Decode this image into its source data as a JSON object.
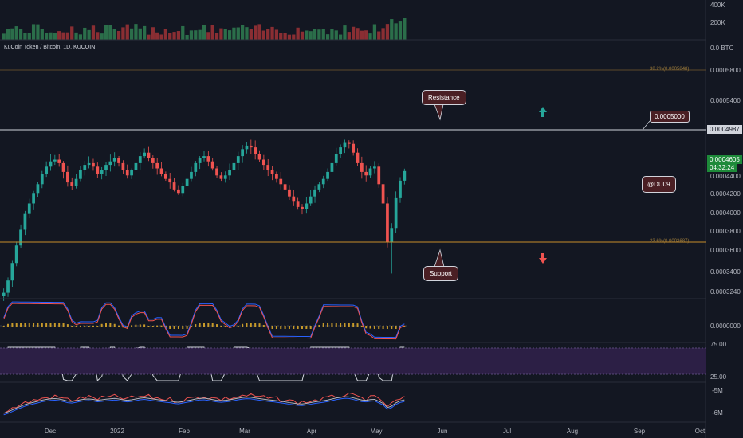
{
  "symbol": {
    "name": "KuCoin Token / Bitcoin, 1D, KUCOIN"
  },
  "volume_axis": [
    "400K",
    "200K"
  ],
  "price_axis": [
    "0.0 BTC",
    "0.0005800",
    "0.0005400",
    "0.0004400",
    "0.0004200",
    "0.0004000",
    "0.0003800",
    "0.0003600",
    "0.0003400",
    "0.0003240"
  ],
  "price_marks": {
    "resistance_level": "0.0004987",
    "current_price": "0.0004605",
    "countdown": "04:32:24"
  },
  "macd_axis": [
    "0.0000000"
  ],
  "rsi_axis": [
    "75.00",
    "25.00"
  ],
  "obv_axis": [
    "-5M",
    "-6M"
  ],
  "time_axis": [
    "Dec",
    "2022",
    "Feb",
    "Mar",
    "Apr",
    "May",
    "Jun",
    "Jul",
    "Aug",
    "Sep",
    "Oct"
  ],
  "fib_levels": {
    "upper": "38.2%(0.0005848)",
    "lower": "23.6%(0.0003687)"
  },
  "annotations": {
    "resistance": "Resistance",
    "support": "Support",
    "level_tag": "0.0005000",
    "author": "@DU09"
  },
  "colors": {
    "background": "#131722",
    "up": "#26a69a",
    "down": "#ef5350",
    "current_price_bg": "#1e8a3a",
    "annotation_bg": "#4a1f24"
  },
  "chart_data": {
    "type": "candlestick",
    "pair": "KCS/BTC",
    "timeframe": "1D",
    "y_unit": "BTC",
    "ylim": [
      0.000318,
      0.0006
    ],
    "support": 0.0003687,
    "resistance": 0.0004987,
    "last": 0.0004605,
    "close_path": [
      0.000322,
      0.000336,
      0.000356,
      0.000376,
      0.000394,
      0.000412,
      0.000424,
      0.000436,
      0.000446,
      0.000458,
      0.000466,
      0.000472,
      0.000474,
      0.00047,
      0.00046,
      0.000448,
      0.000444,
      0.000452,
      0.000462,
      0.000468,
      0.00047,
      0.000466,
      0.000458,
      0.000462,
      0.000468,
      0.000472,
      0.000476,
      0.00047,
      0.000462,
      0.000456,
      0.000462,
      0.00047,
      0.000478,
      0.000482,
      0.000476,
      0.00047,
      0.000464,
      0.000458,
      0.000452,
      0.000448,
      0.00044,
      0.000436,
      0.000444,
      0.000452,
      0.00046,
      0.00047,
      0.000476,
      0.000478,
      0.000472,
      0.000464,
      0.000456,
      0.000452,
      0.000456,
      0.000462,
      0.00047,
      0.000478,
      0.000486,
      0.00049,
      0.000488,
      0.00048,
      0.000474,
      0.000468,
      0.000462,
      0.000458,
      0.000452,
      0.000446,
      0.00044,
      0.000432,
      0.000426,
      0.00042,
      0.000418,
      0.000424,
      0.000432,
      0.00044,
      0.000446,
      0.000452,
      0.00046,
      0.00047,
      0.00048,
      0.000488,
      0.000494,
      0.000492,
      0.000482,
      0.00047,
      0.00046,
      0.000456,
      0.000464,
      0.000466,
      0.000446,
      0.000424,
      0.00038,
      0.000396,
      0.00043,
      0.00045,
      0.000461
    ]
  }
}
